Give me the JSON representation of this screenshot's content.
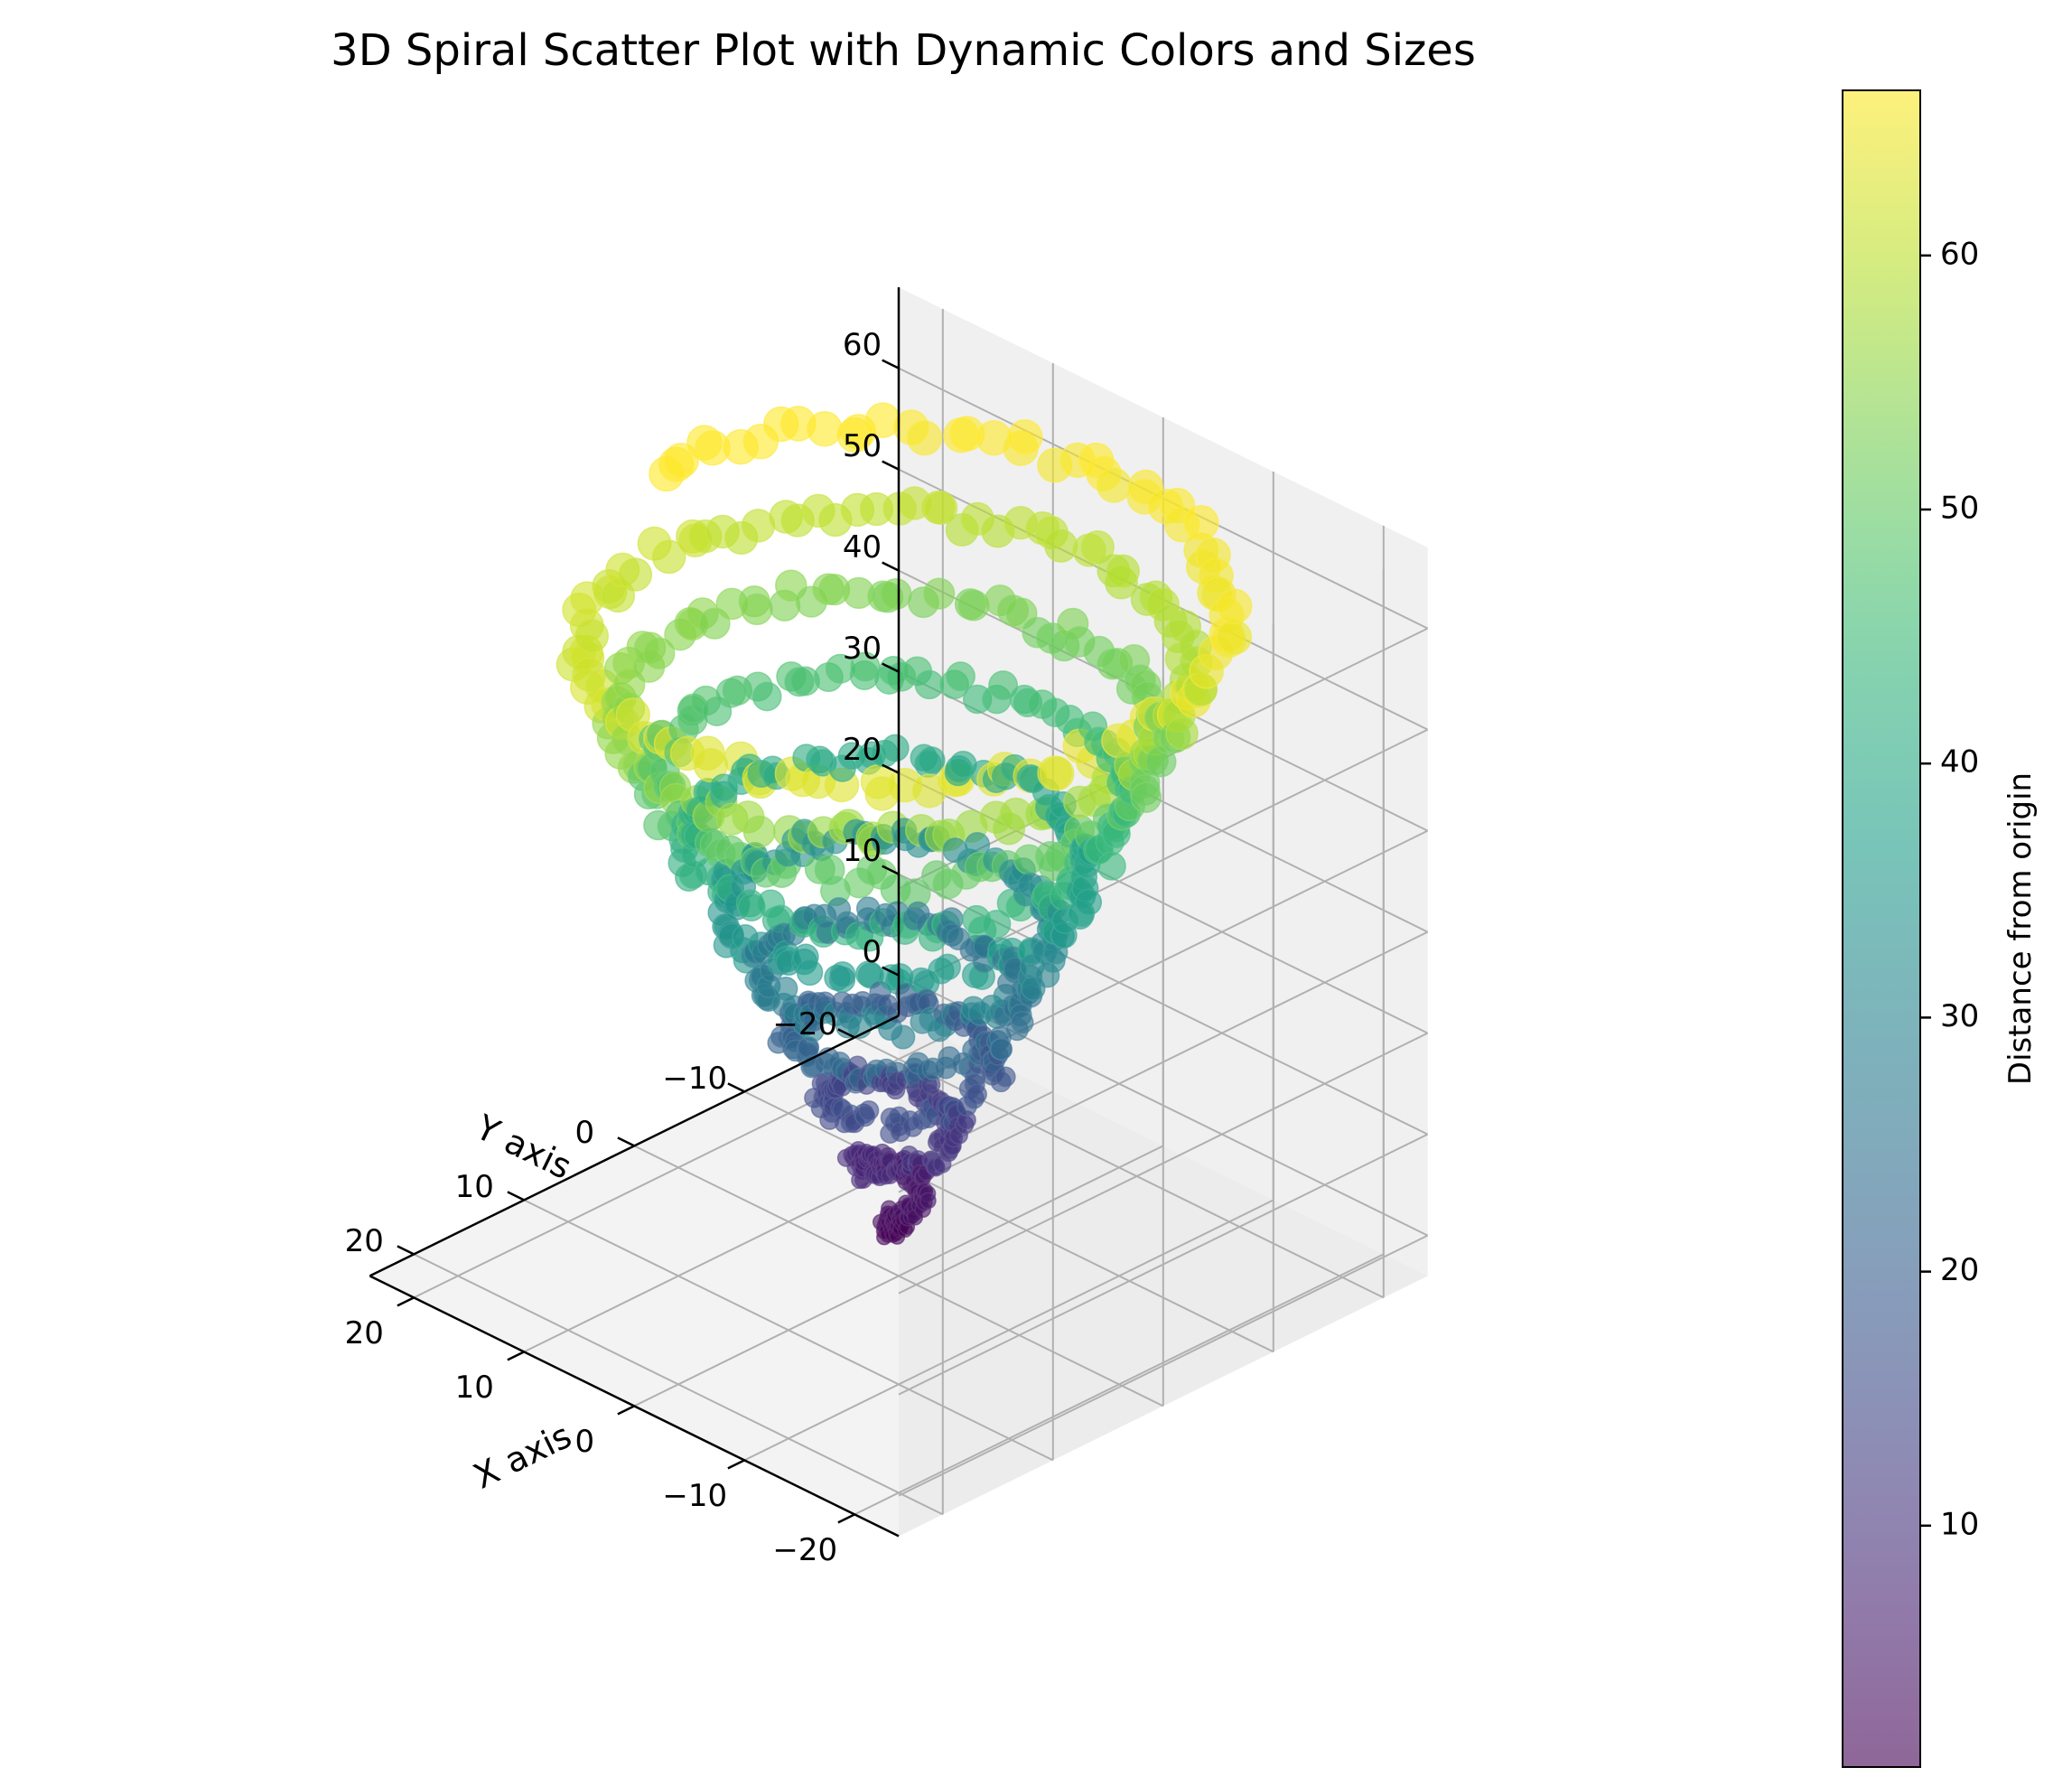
{
  "chart_data": {
    "type": "scatter3d",
    "title": "3D Spiral Scatter Plot with Dynamic Colors and Sizes",
    "xlabel": "X axis",
    "ylabel": "Y axis",
    "zlabel": "",
    "x_ticks": [
      "−20",
      "−10",
      "0",
      "10",
      "20"
    ],
    "y_ticks": [
      "−20",
      "−10",
      "0",
      "10",
      "20"
    ],
    "z_ticks": [
      "0",
      "10",
      "20",
      "30",
      "40",
      "50",
      "60"
    ],
    "xlim": [
      -24,
      24
    ],
    "ylim": [
      -24,
      24
    ],
    "zlim": [
      -4,
      68
    ],
    "colorbar": {
      "label": "Distance from origin",
      "ticks": [
        "10",
        "20",
        "30",
        "40",
        "50",
        "60"
      ],
      "range": [
        0.5,
        66.5
      ],
      "colormap": "viridis"
    },
    "spiral": {
      "z_range": [
        0,
        64
      ],
      "radius_range": [
        0,
        22
      ],
      "turns": 10,
      "points": 1000
    },
    "grid": true,
    "marker_alpha": 0.6
  }
}
